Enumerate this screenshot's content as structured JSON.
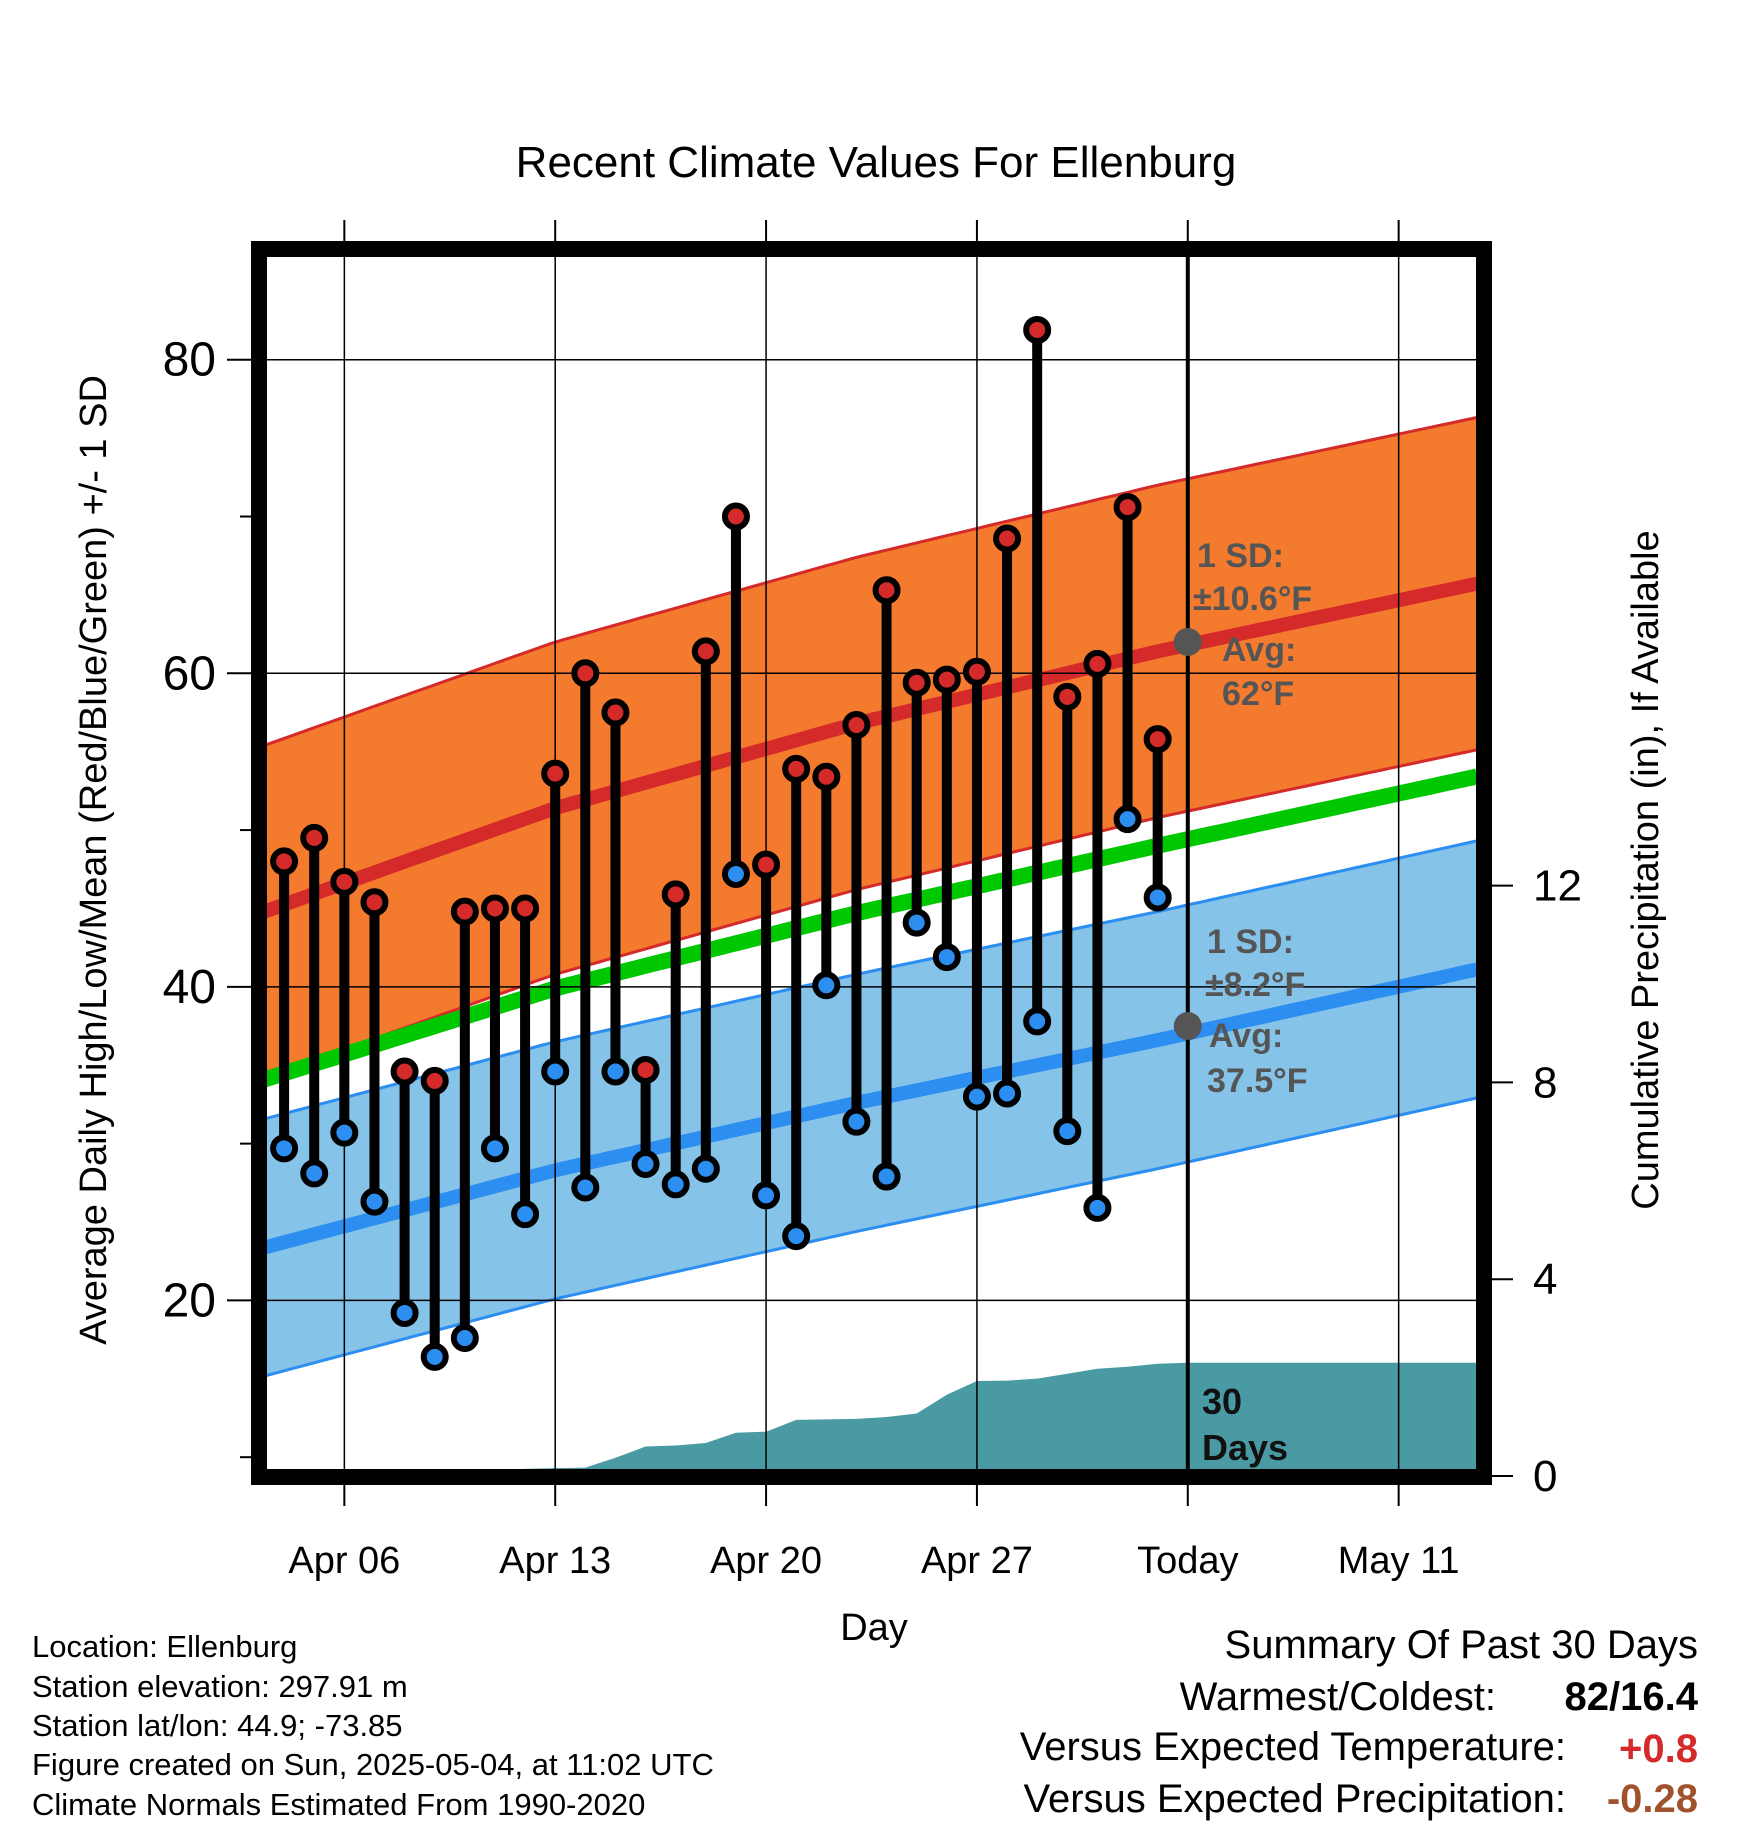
{
  "chart_data": {
    "type": "line",
    "title": "Recent Climate Values For Ellenburg",
    "xlabel": "Day",
    "ylabel_left": "Average Daily High/Low/Mean (Red/Blue/Green) +/- 1 SD",
    "ylabel_right": "Cumulative Precipitation (in), If Available",
    "x_ticks": [
      "Apr 06",
      "Apr 13",
      "Apr 20",
      "Apr 27",
      "Today",
      "May 11"
    ],
    "x_tick_days": [
      3,
      10,
      17,
      24,
      31,
      38
    ],
    "xlim": [
      0.2,
      40.8
    ],
    "y_left_ticks": [
      20,
      40,
      60,
      80
    ],
    "ylim_left": [
      8.8,
      87
    ],
    "y_right_ticks": [
      0,
      4,
      8,
      12
    ],
    "today_day": 31,
    "days": [
      1,
      2,
      3,
      4,
      5,
      6,
      7,
      8,
      9,
      10,
      11,
      12,
      13,
      14,
      15,
      16,
      17,
      18,
      19,
      20,
      21,
      22,
      23,
      24,
      25,
      26,
      27,
      28,
      29,
      30
    ],
    "daily_high": [
      48.0,
      49.5,
      46.7,
      45.4,
      34.6,
      34.0,
      44.8,
      45.0,
      45.0,
      53.6,
      60.0,
      57.5,
      34.7,
      45.9,
      61.4,
      70.0,
      47.8,
      53.9,
      53.4,
      56.7,
      65.3,
      59.4,
      59.6,
      60.1,
      68.6,
      81.9,
      58.5,
      60.6,
      70.6,
      55.8
    ],
    "daily_low": [
      29.7,
      28.1,
      30.7,
      26.3,
      19.2,
      16.4,
      17.6,
      29.7,
      25.5,
      34.6,
      27.2,
      34.6,
      28.7,
      27.4,
      28.4,
      47.2,
      26.7,
      24.1,
      40.1,
      31.4,
      27.9,
      44.1,
      41.9,
      33.0,
      33.2,
      37.8,
      30.8,
      25.9,
      50.7,
      45.7
    ],
    "normal_high": {
      "day": [
        0.2,
        10,
        20,
        30,
        40.8
      ],
      "values": [
        44.7,
        51.4,
        56.8,
        61.4,
        65.8
      ]
    },
    "normal_low": {
      "day": [
        0.2,
        10,
        20,
        30,
        40.8
      ],
      "values": [
        23.3,
        28.3,
        32.6,
        36.6,
        41.2
      ]
    },
    "normal_mean": {
      "day": [
        0.2,
        10,
        20,
        30,
        40.8
      ],
      "values": [
        34.0,
        39.9,
        44.7,
        49.0,
        53.5
      ]
    },
    "sd_high": 10.6,
    "sd_low": 8.2,
    "precip_days": [
      0.2,
      2.5,
      3,
      4,
      5,
      8,
      10,
      11,
      12,
      13,
      14,
      15,
      16,
      17,
      18,
      19,
      20,
      21,
      22,
      23,
      24,
      25,
      26,
      27,
      28,
      29,
      30,
      31,
      40.8
    ],
    "precip_cumulative": [
      0,
      0,
      0.02,
      0.03,
      0.12,
      0.13,
      0.16,
      0.17,
      0.37,
      0.6,
      0.62,
      0.67,
      0.88,
      0.9,
      1.14,
      1.15,
      1.16,
      1.2,
      1.27,
      1.65,
      1.93,
      1.94,
      1.98,
      2.08,
      2.18,
      2.22,
      2.28,
      2.3,
      2.3
    ],
    "annotations": {
      "high_sd_label": "1 SD:",
      "high_sd_value": "±10.6°F",
      "high_avg_label": "Avg:",
      "high_avg_value": "62°F",
      "high_avg_today": 62,
      "low_sd_label": "1 SD:",
      "low_sd_value": "±8.2°F",
      "low_avg_label": "Avg:",
      "low_avg_value": "37.5°F",
      "low_avg_today": 37.5,
      "period_label_1": "30",
      "period_label_2": "Days"
    },
    "colors": {
      "high_band": "#f47a2e",
      "high_line": "#d42a2a",
      "low_band": "#86c3e8",
      "low_line": "#2b8ef0",
      "mean_line": "#00c800",
      "precip_fill": "#4a9aa4",
      "high_marker": "#d42a2a",
      "low_marker": "#2b8ef0",
      "annotation_text": "#555555"
    },
    "grid": true
  },
  "footer": {
    "location": "Location: Ellenburg",
    "elevation": "Station elevation: 297.91 m",
    "latlon": "Station lat/lon: 44.9; -73.85",
    "created": "Figure created on Sun, 2025-05-04, at 11:02 UTC",
    "normals": "Climate Normals Estimated From 1990-2020"
  },
  "summary": {
    "title": "Summary Of Past 30 Days",
    "warmest_coldest_label": "Warmest/Coldest:",
    "warmest_coldest_value": "82/16.4",
    "vs_temp_label": "Versus Expected Temperature:",
    "vs_temp_value": "+0.8",
    "vs_precip_label": "Versus Expected Precipitation:",
    "vs_precip_value": "-0.28",
    "temp_color": "#d42a2a",
    "precip_color": "#a0522d"
  }
}
